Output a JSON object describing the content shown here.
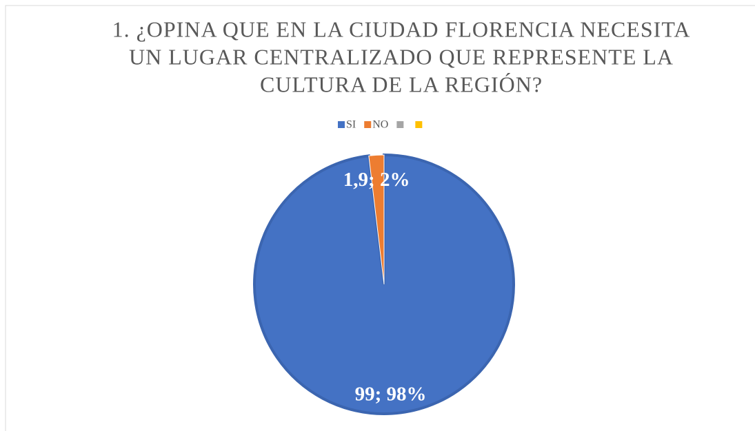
{
  "chart_data": {
    "type": "pie",
    "title": [
      "1. ¿OPINA QUE EN LA CIUDAD FLORENCIA NECESITA",
      "UN LUGAR CENTRALIZADO QUE REPRESENTE LA",
      "CULTURA DE LA REGIÓN?"
    ],
    "categories": [
      "SI",
      "NO",
      null,
      null
    ],
    "values": [
      99,
      1.9,
      null,
      null
    ],
    "value_labels": [
      "99; 98%",
      "1,9; 2%",
      null,
      null
    ],
    "colors": [
      "#4472c4",
      "#ed7d31",
      "#a5a5a5",
      "#ffc000"
    ],
    "legend": "top"
  }
}
